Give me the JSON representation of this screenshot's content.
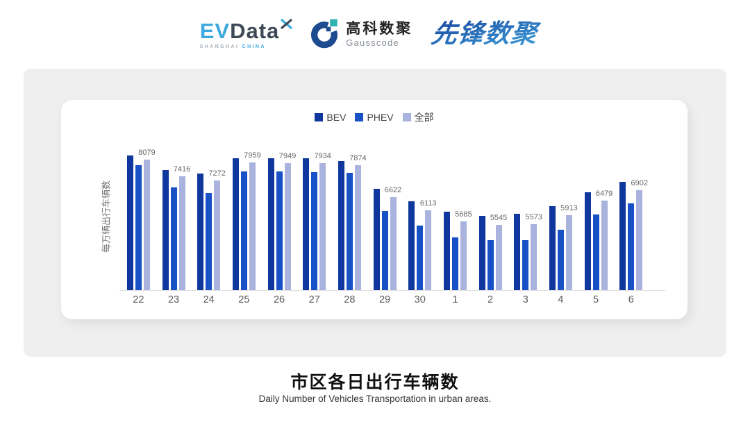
{
  "header": {
    "evdata": {
      "ev": "EV",
      "data": "Data",
      "sub_left": "SHANGHAI",
      "sub_right": "CHINA"
    },
    "gausscode": {
      "cn": "高科数聚",
      "en": "Gausscode"
    },
    "xianfeng": {
      "text": "先锋数聚"
    }
  },
  "chart_data": {
    "type": "bar",
    "title": "市区各日出行车辆数",
    "subtitle": "Daily Number of Vehicles Transportation in urban areas.",
    "ylabel": "每万辆出行车辆数",
    "categories": [
      "22",
      "23",
      "24",
      "25",
      "26",
      "27",
      "28",
      "29",
      "30",
      "1",
      "2",
      "3",
      "4",
      "5",
      "6"
    ],
    "series": [
      {
        "name": "BEV",
        "color": "#10379E",
        "estimated": true,
        "values": [
          8230,
          7660,
          7550,
          8130,
          8125,
          8120,
          8035,
          6930,
          6460,
          6060,
          5900,
          5970,
          6260,
          6800,
          7220
        ]
      },
      {
        "name": "PHEV",
        "color": "#1751C5",
        "estimated": true,
        "values": [
          7850,
          6990,
          6780,
          7630,
          7615,
          7590,
          7560,
          6080,
          5510,
          5040,
          4950,
          4945,
          5350,
          5940,
          6365
        ]
      },
      {
        "name": "全部",
        "color": "#A9B3DE",
        "data_labels": true,
        "values": [
          8079,
          7416,
          7272,
          7959,
          7949,
          7934,
          7874,
          6622,
          6113,
          5685,
          5545,
          5573,
          5913,
          6479,
          6902
        ]
      }
    ],
    "legend_position": "top",
    "grid": false,
    "y_axis_ticks_visible": false,
    "ylim": [
      3000,
      8400
    ]
  },
  "colors": {
    "panel_bg": "#efefef",
    "card_bg": "#ffffff",
    "axis_line": "#e0e0e0",
    "evdata_blue": "#3BA9DE",
    "evdata_dark": "#3D4956",
    "gauss_navy": "#1D4B8F",
    "gauss_teal": "#2FB3B3",
    "xianfeng_grad_start": "#17479E",
    "xianfeng_grad_end": "#3FA0DC"
  }
}
